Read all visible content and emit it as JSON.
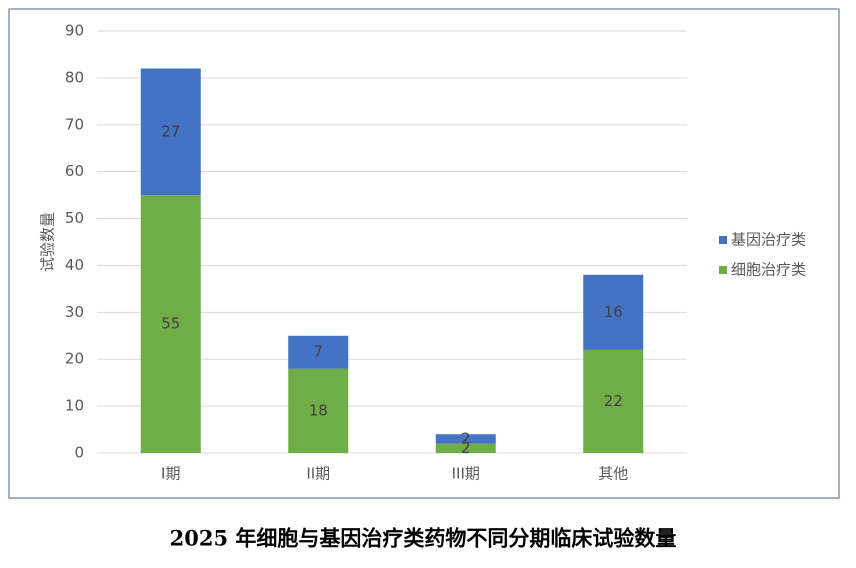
{
  "chart_data": {
    "type": "stacked_bar",
    "title": "2025 年细胞与基因治疗类药物不同分期临床试验数量",
    "y_label": "试验数量",
    "categories": [
      "I期",
      "II期",
      "III期",
      "其他"
    ],
    "series": [
      {
        "name": "细胞治疗类",
        "color": "#70ad47",
        "values": [
          55,
          18,
          2,
          22
        ]
      },
      {
        "name": "基因治疗类",
        "color": "#4472c4",
        "values": [
          27,
          7,
          2,
          16
        ]
      }
    ],
    "ylim": [
      0,
      90
    ],
    "yticks": [
      0,
      10,
      20,
      30,
      40,
      50,
      60,
      70,
      80,
      90
    ],
    "grid": true,
    "legend": "right"
  }
}
